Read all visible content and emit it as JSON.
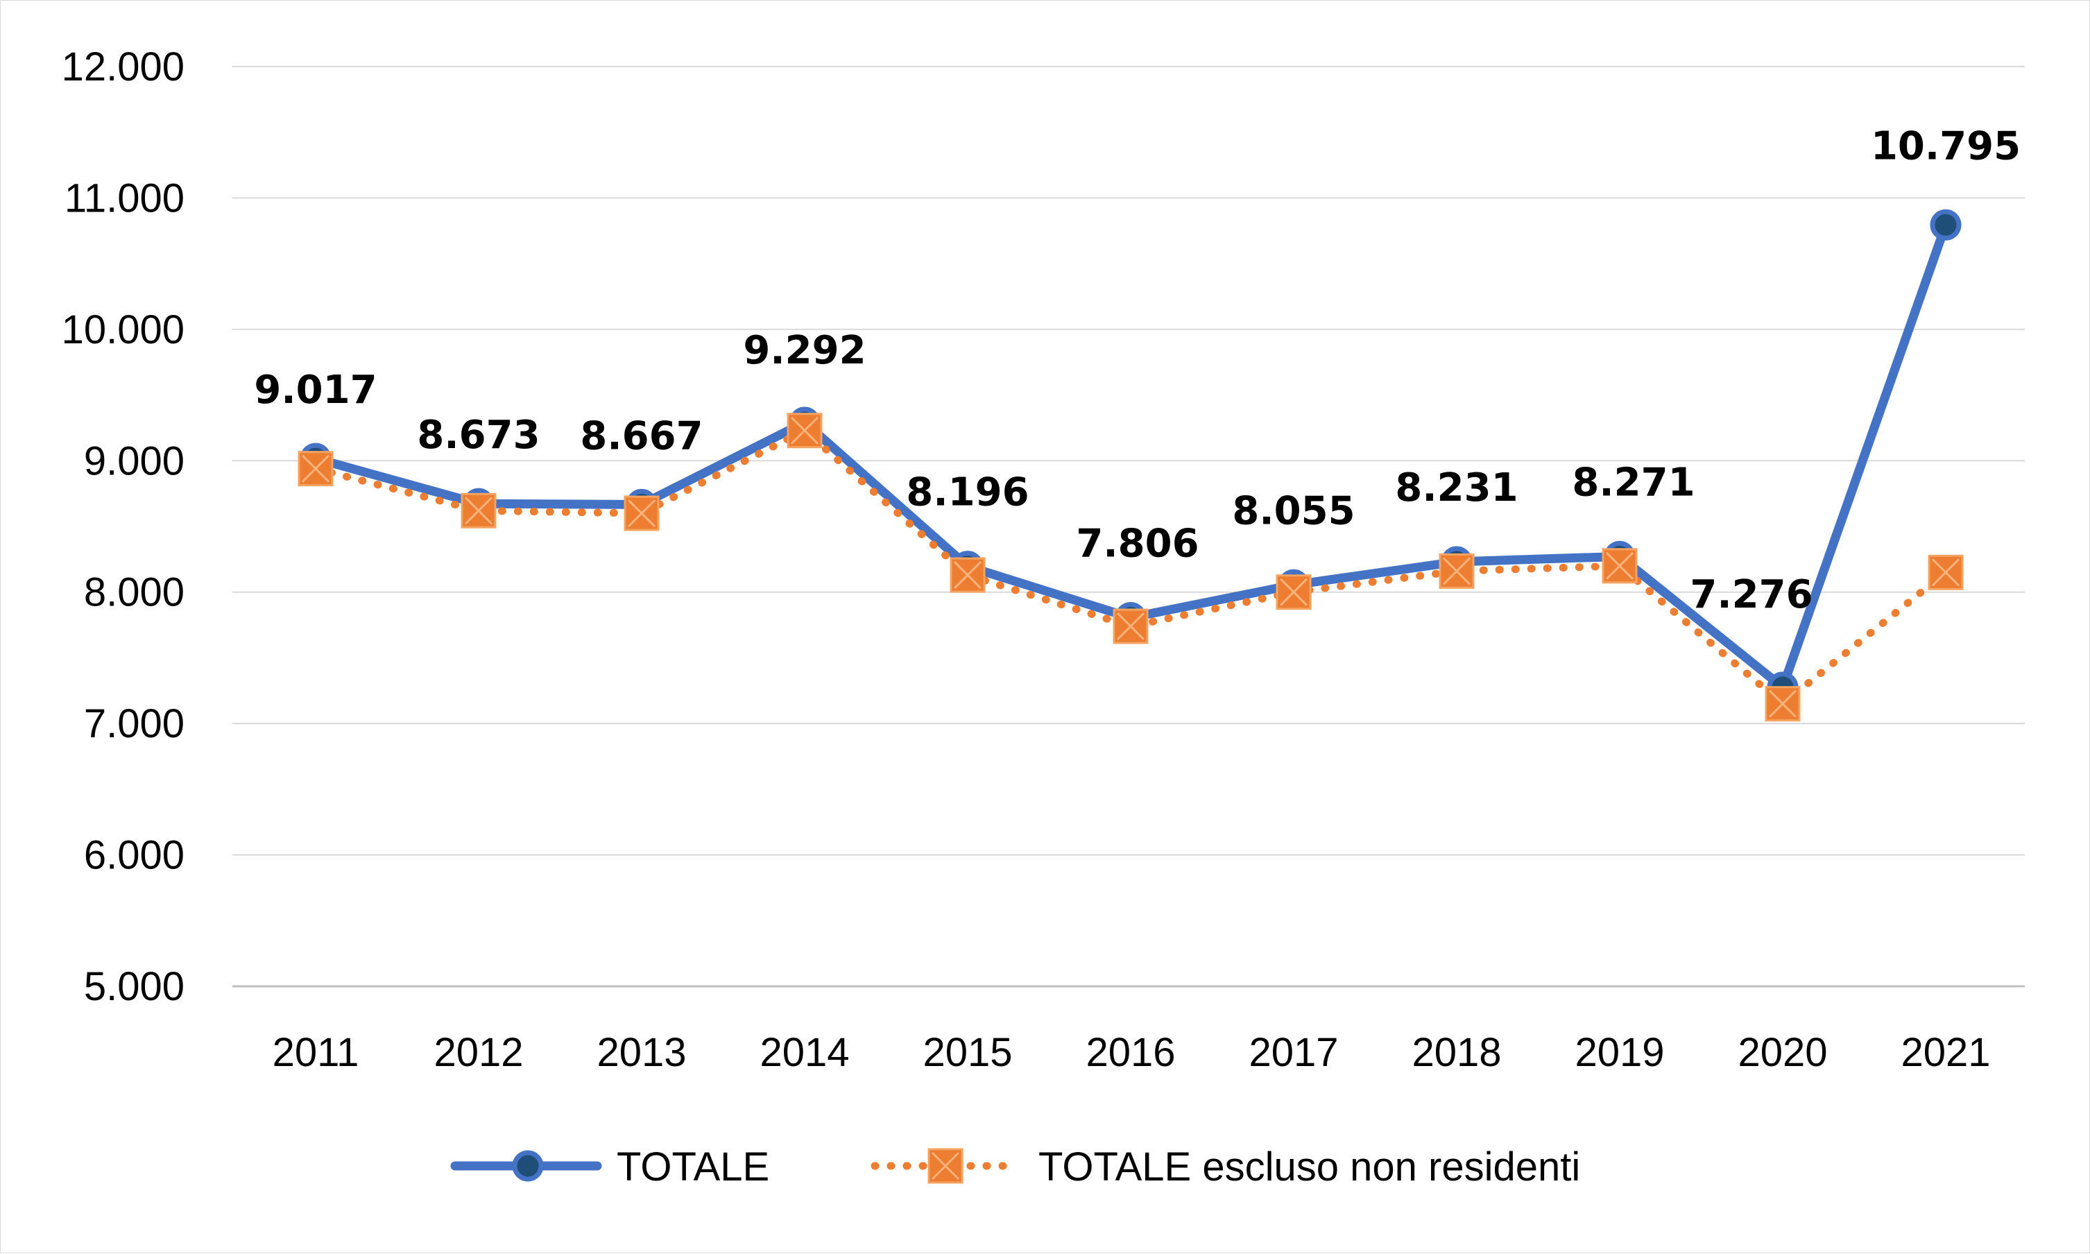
{
  "chart_data": {
    "type": "line",
    "title": "",
    "xlabel": "",
    "ylabel": "",
    "categories": [
      "2011",
      "2012",
      "2013",
      "2014",
      "2015",
      "2016",
      "2017",
      "2018",
      "2019",
      "2020",
      "2021"
    ],
    "ylim": [
      5000,
      12000
    ],
    "y_ticks": [
      {
        "value": 5000,
        "label": "5.000"
      },
      {
        "value": 6000,
        "label": "6.000"
      },
      {
        "value": 7000,
        "label": "7.000"
      },
      {
        "value": 8000,
        "label": "8.000"
      },
      {
        "value": 9000,
        "label": "9.000"
      },
      {
        "value": 10000,
        "label": "10.000"
      },
      {
        "value": 11000,
        "label": "11.000"
      },
      {
        "value": 12000,
        "label": "12.000"
      }
    ],
    "grid": true,
    "legend_position": "bottom",
    "series": [
      {
        "name": "TOTALE",
        "color": "#4472c4",
        "line_style": "solid",
        "marker": "circle",
        "values": [
          9017,
          8673,
          8667,
          9292,
          8196,
          7806,
          8055,
          8231,
          8271,
          7276,
          10795
        ],
        "labels": [
          "9.017",
          "8.673",
          "8.667",
          "9.292",
          "8.196",
          "7.806",
          "8.055",
          "8.231",
          "8.271",
          "7.276",
          "10.795"
        ]
      },
      {
        "name": "TOTALE escluso non residenti",
        "color": "#ed7d31",
        "line_style": "dotted",
        "marker": "square-x",
        "values": [
          8940,
          8620,
          8600,
          9230,
          8130,
          7740,
          8000,
          8160,
          8200,
          7150,
          8150
        ]
      }
    ]
  }
}
